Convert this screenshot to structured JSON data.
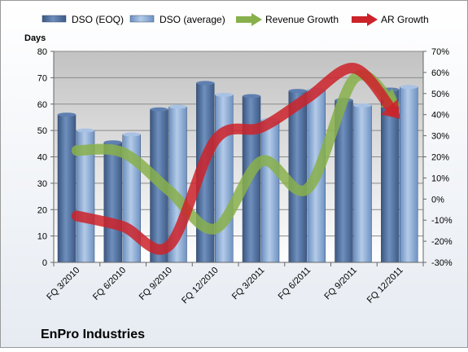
{
  "chart_data": {
    "type": "bar",
    "title": "EnPro Industries",
    "ylabel": "Days",
    "categories": [
      "FQ 3/2010",
      "FQ 6/2010",
      "FQ 9/2010",
      "FQ 12/2010",
      "FQ 3/2011",
      "FQ 6/2011",
      "FQ 9/2011",
      "FQ 12/2011"
    ],
    "ylim": [
      0,
      80
    ],
    "y_ticks": [
      "0",
      "10",
      "20",
      "30",
      "40",
      "50",
      "60",
      "70",
      "80"
    ],
    "y2lim": [
      -0.3,
      0.7
    ],
    "y2_ticks": [
      "-30%",
      "-20%",
      "-10%",
      "0%",
      "10%",
      "20%",
      "30%",
      "40%",
      "50%",
      "60%",
      "70%"
    ],
    "grid": true,
    "legend_position": "top",
    "series": [
      {
        "name": "DSO (EOQ)",
        "type": "bar",
        "axis": "left",
        "color": "#4a6a9a",
        "values": [
          56,
          45.5,
          58,
          68,
          63,
          65,
          61.5,
          65.5
        ]
      },
      {
        "name": "DSO (average)",
        "type": "bar",
        "axis": "left",
        "color": "#7fa1cc",
        "values": [
          50,
          48.5,
          59,
          63.5,
          54,
          65.5,
          59.5,
          66.5
        ]
      },
      {
        "name": "Revenue Growth",
        "type": "line",
        "axis": "right",
        "color": "#88b04b",
        "values": [
          0.23,
          0.22,
          0.04,
          -0.14,
          0.18,
          0.05,
          0.57,
          0.44
        ]
      },
      {
        "name": "AR Growth",
        "type": "line",
        "axis": "right",
        "color": "#cc2229",
        "values": [
          -0.08,
          -0.13,
          -0.22,
          0.28,
          0.34,
          0.48,
          0.62,
          0.38
        ]
      }
    ]
  }
}
